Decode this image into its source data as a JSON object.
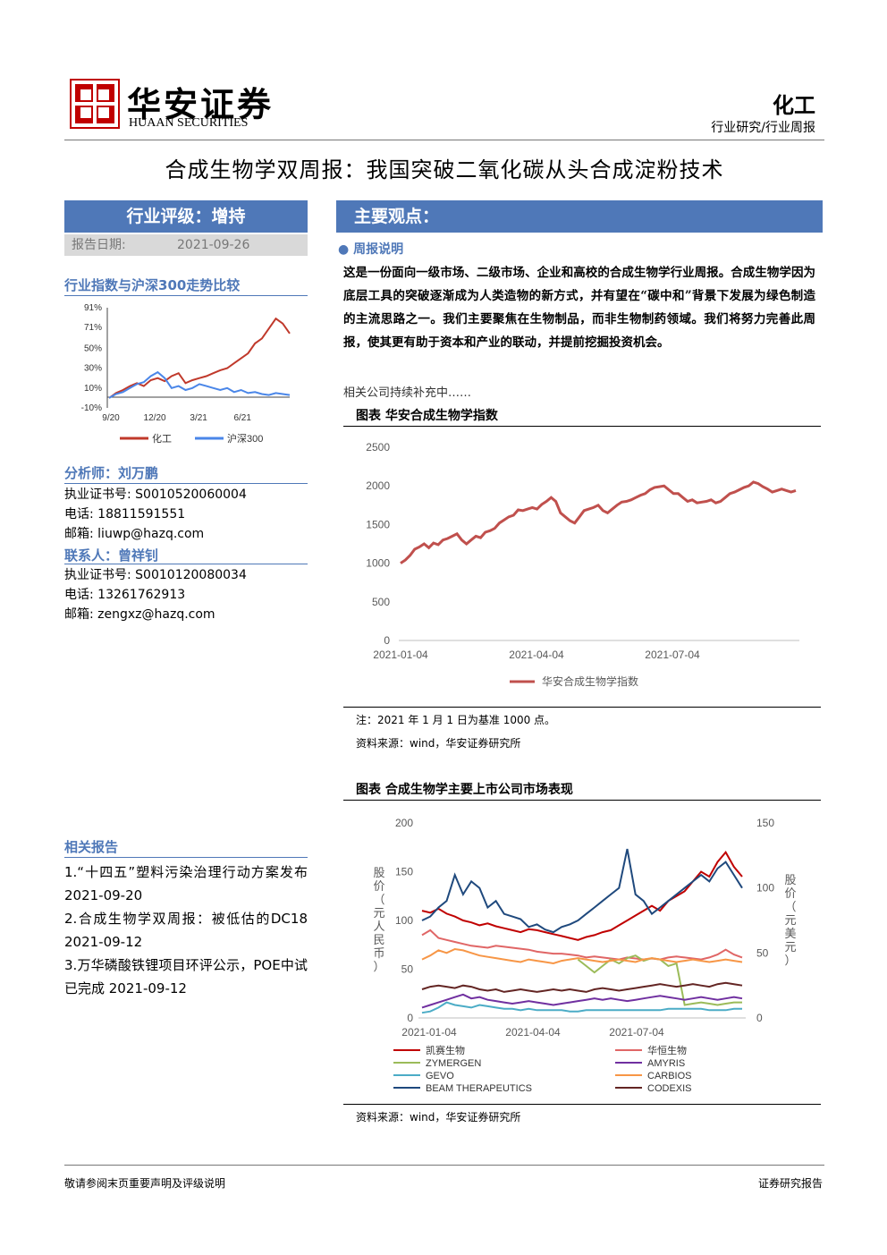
{
  "header": {
    "company_cn": "华安证券",
    "company_en": "HUAAN SECURITIES",
    "industry": "化工",
    "report_type": "行业研究/行业周报"
  },
  "title": "合成生物学双周报：我国突破二氧化碳从头合成淀粉技术",
  "rating": {
    "label": "行业评级：增持",
    "date_label": "报告日期:",
    "date": "2021-09-26"
  },
  "index_compare": {
    "title": "行业指数与沪深300走势比较",
    "chart_data": {
      "type": "line",
      "yticks": [
        "91%",
        "71%",
        "50%",
        "30%",
        "10%",
        "-10%"
      ],
      "xticks": [
        "9/20",
        "12/20",
        "3/21",
        "6/21"
      ],
      "ylim": [
        -10,
        91
      ],
      "series": [
        {
          "name": "化工",
          "color": "#c0392b",
          "values": [
            0,
            5,
            8,
            12,
            15,
            12,
            18,
            20,
            17,
            22,
            25,
            15,
            18,
            20,
            22,
            25,
            28,
            30,
            35,
            40,
            45,
            55,
            60,
            70,
            80,
            75,
            65
          ]
        },
        {
          "name": "沪深300",
          "color": "#4a86e8",
          "values": [
            0,
            4,
            6,
            10,
            14,
            16,
            22,
            26,
            20,
            10,
            12,
            8,
            10,
            14,
            12,
            10,
            8,
            10,
            6,
            8,
            5,
            6,
            4,
            3,
            5,
            4,
            3
          ]
        }
      ]
    }
  },
  "analysts": [
    {
      "title": "分析师：刘万鹏",
      "cert_label": "执业证书号:",
      "cert": "S0010520060004",
      "phone_label": "电话:",
      "phone": "18811591551",
      "email_label": "邮箱:",
      "email": "liuwp@hazq.com"
    },
    {
      "title": "联系人：曾祥钊",
      "cert_label": "执业证书号:",
      "cert": "S0010120080034",
      "phone_label": "电话:",
      "phone": "13261762913",
      "email_label": "邮箱:",
      "email": "zengxz@hazq.com"
    }
  ],
  "related": {
    "title": "相关报告",
    "items": [
      "1.“十四五”塑料污染治理行动方案发布 2021-09-20",
      "2.合成生物学双周报：被低估的DC18 2021-09-12",
      "3.万华磷酸铁锂项目环评公示，POE中试已完成 2021-09-12"
    ]
  },
  "main": {
    "bar_title": "主要观点：",
    "sub_title": "周报说明",
    "paragraph": "这是一份面向一级市场、二级市场、企业和高校的合成生物学行业周报。合成生物学因为底层工具的突破逐渐成为人类造物的新方式，并有望在“碳中和”背景下发展为绿色制造的主流思路之一。我们主要聚焦在生物制品，而非生物制药领域。我们将努力完善此周报，使其更有助于资本和产业的联动，并提前挖掘投资机会。",
    "note": "相关公司持续补充中……"
  },
  "figure1": {
    "title": "图表  华安合成生物学指数",
    "note": "注：2021 年 1 月 1 日为基准 1000 点。",
    "source": "资料来源：wind，华安证券研究所",
    "chart_data": {
      "type": "line",
      "ylim": [
        0,
        2500
      ],
      "yticks": [
        "2500",
        "2000",
        "1500",
        "1000",
        "500",
        "0"
      ],
      "xticks": [
        "2021-01-04",
        "2021-04-04",
        "2021-07-04"
      ],
      "series": [
        {
          "name": "华安合成生物学指数",
          "color": "#c0504d",
          "values": [
            1000,
            1040,
            1100,
            1180,
            1210,
            1250,
            1200,
            1260,
            1240,
            1300,
            1320,
            1350,
            1380,
            1300,
            1250,
            1300,
            1350,
            1330,
            1400,
            1420,
            1450,
            1520,
            1560,
            1600,
            1620,
            1690,
            1680,
            1700,
            1720,
            1700,
            1760,
            1800,
            1850,
            1800,
            1650,
            1600,
            1550,
            1520,
            1600,
            1680,
            1700,
            1720,
            1750,
            1680,
            1650,
            1700,
            1750,
            1790,
            1800,
            1820,
            1850,
            1880,
            1900,
            1950,
            1980,
            1990,
            2000,
            1950,
            1900,
            1900,
            1850,
            1800,
            1820,
            1780,
            1790,
            1800,
            1820,
            1780,
            1800,
            1850,
            1900,
            1920,
            1950,
            1980,
            2000,
            2050,
            2030,
            1990,
            1960,
            1920,
            1940,
            1960,
            1940,
            1920,
            1940
          ]
        }
      ]
    }
  },
  "figure2": {
    "title": "图表  合成生物学主要上市公司市场表现",
    "source": "资料来源：wind，华安证券研究所",
    "y_left_label": "股价（元人民币）",
    "y_right_label": "股价（元美元）",
    "chart_data": {
      "type": "line",
      "ylim_left": [
        0,
        200
      ],
      "ylim_right": [
        0,
        150
      ],
      "yticks_left": [
        "200",
        "150",
        "100",
        "50",
        "0"
      ],
      "yticks_right": [
        "150",
        "100",
        "50",
        "0"
      ],
      "xticks": [
        "2021-01-04",
        "2021-04-04",
        "2021-07-04"
      ],
      "legend": [
        "凯赛生物",
        "华恒生物",
        "ZYMERGEN",
        "AMYRIS",
        "GEVO",
        "CARBIOS",
        "BEAM THERAPEUTICS",
        "CODEXIS"
      ],
      "series": [
        {
          "name": "凯赛生物",
          "color": "#c00000",
          "axis": "left",
          "values": [
            110,
            108,
            112,
            107,
            104,
            100,
            98,
            95,
            97,
            94,
            92,
            90,
            88,
            91,
            90,
            88,
            86,
            84,
            82,
            80,
            83,
            85,
            88,
            90,
            95,
            100,
            105,
            110,
            115,
            110,
            120,
            125,
            130,
            140,
            150,
            145,
            160,
            170,
            155,
            145
          ]
        },
        {
          "name": "华恒生物",
          "color": "#e06666",
          "axis": "left",
          "values": [
            85,
            90,
            82,
            80,
            78,
            76,
            74,
            73,
            72,
            74,
            73,
            72,
            71,
            70,
            68,
            67,
            66,
            66,
            65,
            64,
            62,
            63,
            62,
            61,
            60,
            62,
            61,
            60,
            61,
            60,
            62,
            63,
            62,
            61,
            60,
            62,
            65,
            70,
            65,
            62
          ]
        },
        {
          "name": "ZYMERGEN",
          "color": "#9bbb59",
          "axis": "right",
          "values": [
            null,
            null,
            null,
            null,
            null,
            null,
            null,
            null,
            null,
            null,
            null,
            null,
            null,
            null,
            null,
            null,
            null,
            null,
            null,
            45,
            40,
            35,
            40,
            45,
            42,
            46,
            48,
            44,
            46,
            45,
            40,
            42,
            10,
            11,
            12,
            11,
            10,
            11,
            12,
            12
          ]
        },
        {
          "name": "AMYRIS",
          "color": "#7030a0",
          "axis": "right",
          "values": [
            8,
            10,
            12,
            14,
            16,
            18,
            15,
            16,
            14,
            13,
            12,
            11,
            12,
            13,
            12,
            11,
            10,
            11,
            12,
            13,
            14,
            15,
            14,
            15,
            14,
            13,
            14,
            15,
            16,
            17,
            16,
            15,
            14,
            15,
            16,
            15,
            14,
            15,
            16,
            15
          ]
        },
        {
          "name": "GEVO",
          "color": "#4bacc6",
          "axis": "right",
          "values": [
            4,
            5,
            8,
            12,
            10,
            9,
            8,
            10,
            9,
            8,
            7,
            7,
            6,
            7,
            6,
            6,
            6,
            6,
            5,
            5,
            6,
            6,
            6,
            6,
            6,
            6,
            6,
            6,
            6,
            6,
            7,
            7,
            7,
            7,
            7,
            6,
            6,
            6,
            7,
            7
          ]
        },
        {
          "name": "CARBIOS",
          "color": "#f79646",
          "axis": "right",
          "values": [
            45,
            48,
            52,
            50,
            53,
            52,
            50,
            48,
            47,
            46,
            45,
            44,
            43,
            45,
            44,
            43,
            42,
            44,
            45,
            46,
            45,
            44,
            43,
            44,
            45,
            44,
            43,
            45,
            46,
            45,
            44,
            43,
            44,
            45,
            44,
            43,
            44,
            45,
            44,
            43
          ]
        },
        {
          "name": "BEAM THERAPEUTICS",
          "color": "#1f497d",
          "axis": "right",
          "values": [
            75,
            78,
            85,
            90,
            110,
            95,
            105,
            100,
            85,
            90,
            80,
            78,
            76,
            70,
            72,
            68,
            66,
            70,
            72,
            75,
            80,
            85,
            90,
            95,
            100,
            130,
            95,
            90,
            80,
            85,
            90,
            95,
            100,
            105,
            110,
            105,
            115,
            120,
            110,
            100
          ]
        },
        {
          "name": "CODEXIS",
          "color": "#632523",
          "axis": "right",
          "values": [
            22,
            24,
            25,
            24,
            23,
            25,
            24,
            22,
            21,
            22,
            20,
            21,
            22,
            21,
            20,
            21,
            22,
            21,
            22,
            21,
            20,
            22,
            23,
            22,
            21,
            22,
            23,
            24,
            25,
            26,
            25,
            24,
            25,
            26,
            25,
            24,
            26,
            27,
            26,
            25
          ]
        }
      ]
    }
  },
  "footer": {
    "left": "敬请参阅末页重要声明及评级说明",
    "right": "证券研究报告"
  }
}
